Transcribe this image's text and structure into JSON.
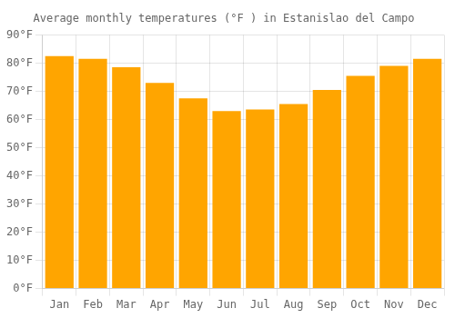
{
  "chart_data": {
    "type": "bar",
    "title": "Average monthly temperatures (°F ) in Estanislao del Campo",
    "categories": [
      "Jan",
      "Feb",
      "Mar",
      "Apr",
      "May",
      "Jun",
      "Jul",
      "Aug",
      "Sep",
      "Oct",
      "Nov",
      "Dec"
    ],
    "values": [
      82.5,
      81.5,
      78.5,
      73.0,
      67.5,
      63.0,
      63.5,
      65.5,
      70.5,
      75.5,
      79.0,
      81.5
    ],
    "color": "#FFA500",
    "ylim": [
      0,
      90
    ],
    "yticks": [
      {
        "value": 0,
        "label": "0°F"
      },
      {
        "value": 10,
        "label": "10°F"
      },
      {
        "value": 20,
        "label": "20°F"
      },
      {
        "value": 30,
        "label": "30°F"
      },
      {
        "value": 40,
        "label": "40°F"
      },
      {
        "value": 50,
        "label": "50°F"
      },
      {
        "value": 60,
        "label": "60°F"
      },
      {
        "value": 70,
        "label": "70°F"
      },
      {
        "value": 80,
        "label": "80°F"
      },
      {
        "value": 90,
        "label": "90°F"
      }
    ],
    "grid": true
  }
}
